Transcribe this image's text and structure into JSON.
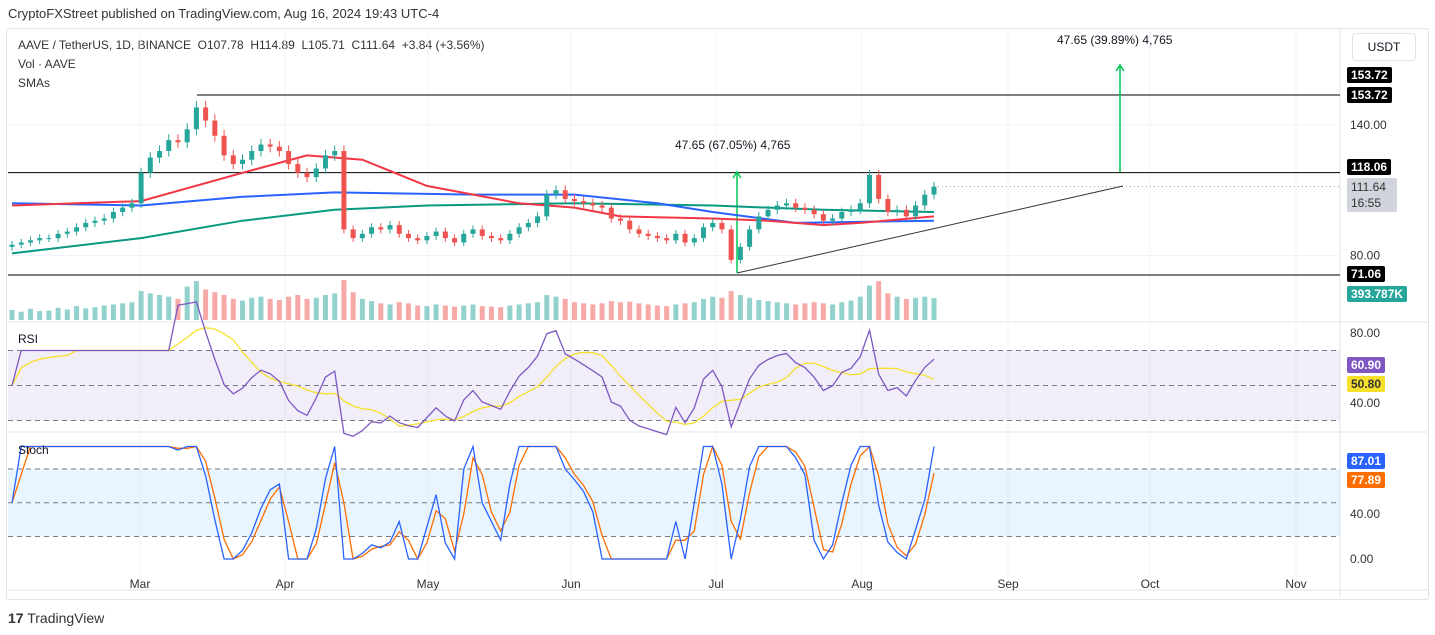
{
  "header": {
    "published": "CryptoFXStreet published on TradingView.com, Aug 16, 2024 19:43 UTC-4",
    "symbol_line": "AAVE / TetherUS, 1D, BINANCE  O107.78  H114.89  L105.71  C111.64  +3.84 (+3.56%)",
    "vol_label": "Vol · AAVE",
    "sma_label": "SMAs",
    "currency": "USDT"
  },
  "panes": {
    "rsi_title": "RSI",
    "stoch_title": "Stoch"
  },
  "price_labels": {
    "high_line": "153.72",
    "high_line2": "153.72",
    "resistance": "118.06",
    "last": "111.64",
    "countdown": "16:55",
    "support": "71.06",
    "volume": "393.787K",
    "rsi": "60.90",
    "rsi_ma": "50.80",
    "stoch_k": "87.01",
    "stoch_d": "77.89"
  },
  "annotations": {
    "measure1": "47.65 (67.05%) 4,765",
    "measure2": "47.65 (39.89%) 4,765"
  },
  "footer": {
    "brand": "TradingView"
  },
  "colors": {
    "up": "#26a69a",
    "down": "#ef5350",
    "sma_red": "#f23645",
    "sma_blue": "#2962ff",
    "sma_green": "#089981",
    "rsi": "#7e57c2",
    "rsi_ma": "#f7e02b",
    "stoch_k": "#2962ff",
    "stoch_d": "#ff6d00",
    "arrow": "#00c853"
  },
  "chart_data": {
    "type": "candlestick",
    "title": "AAVE / TetherUS, 1D, BINANCE",
    "x_ticks": [
      "Mar",
      "Apr",
      "May",
      "Jun",
      "Jul",
      "Aug",
      "Sep",
      "Oct",
      "Nov"
    ],
    "y_ticks": [
      140,
      80
    ],
    "ylim": [
      60,
      165
    ],
    "step_days": 2,
    "closes": [
      85,
      86,
      87,
      88,
      88,
      90,
      91,
      93,
      95,
      96,
      97,
      100,
      102,
      104,
      118,
      125,
      128,
      133,
      132,
      138,
      148,
      142,
      135,
      126,
      122,
      124,
      128,
      131,
      130,
      128,
      122,
      118,
      116,
      120,
      126,
      128,
      92,
      88,
      90,
      93,
      92,
      94,
      90,
      88,
      87,
      89,
      91,
      88,
      86,
      90,
      92,
      89,
      88,
      87,
      90,
      93,
      95,
      98,
      108,
      110,
      106,
      105,
      104,
      103,
      102,
      97,
      96,
      92,
      90,
      89,
      88,
      87,
      90,
      86,
      88,
      93,
      95,
      92,
      78,
      84,
      92,
      98,
      101,
      103,
      104,
      102,
      101,
      99,
      96,
      97,
      100,
      101,
      104,
      117,
      106,
      100,
      101,
      98,
      103,
      108,
      111.64
    ],
    "volumes_k": [
      180,
      150,
      200,
      160,
      170,
      220,
      190,
      250,
      210,
      230,
      260,
      280,
      300,
      320,
      520,
      480,
      450,
      420,
      380,
      600,
      700,
      550,
      500,
      450,
      380,
      350,
      400,
      420,
      380,
      360,
      420,
      450,
      380,
      400,
      450,
      480,
      720,
      500,
      380,
      340,
      300,
      280,
      320,
      300,
      260,
      250,
      280,
      260,
      240,
      260,
      280,
      250,
      240,
      230,
      260,
      280,
      300,
      320,
      450,
      420,
      380,
      320,
      300,
      280,
      300,
      340,
      320,
      330,
      300,
      280,
      260,
      250,
      280,
      300,
      320,
      380,
      420,
      400,
      520,
      450,
      400,
      360,
      340,
      320,
      300,
      280,
      300,
      320,
      300,
      280,
      320,
      350,
      420,
      620,
      700,
      480,
      420,
      380,
      400,
      420,
      393.787
    ],
    "sma_red": [
      [
        0,
        103
      ],
      [
        14,
        105
      ],
      [
        25,
        118
      ],
      [
        32,
        126
      ],
      [
        38,
        124
      ],
      [
        45,
        112
      ],
      [
        55,
        104
      ],
      [
        61,
        102
      ],
      [
        66,
        98
      ],
      [
        76,
        97
      ],
      [
        82,
        96
      ],
      [
        88,
        94
      ],
      [
        92,
        95
      ],
      [
        100,
        98
      ]
    ],
    "sma_blue": [
      [
        0,
        104
      ],
      [
        14,
        103
      ],
      [
        25,
        107
      ],
      [
        35,
        109
      ],
      [
        50,
        108
      ],
      [
        61,
        108
      ],
      [
        70,
        104
      ],
      [
        76,
        100
      ],
      [
        85,
        95
      ],
      [
        100,
        96
      ]
    ],
    "sma_green": [
      [
        0,
        81
      ],
      [
        14,
        88
      ],
      [
        25,
        96
      ],
      [
        35,
        101
      ],
      [
        45,
        103
      ],
      [
        61,
        104
      ],
      [
        76,
        103
      ],
      [
        88,
        101
      ],
      [
        100,
        100
      ]
    ],
    "horizontal_levels": [
      153.72,
      118.06,
      71.06
    ],
    "rsi_ticks": [
      80,
      40
    ],
    "rsi_bands": [
      70,
      50,
      30
    ],
    "stoch_ticks": [
      40,
      0
    ],
    "stoch_bands": [
      80,
      50,
      20
    ]
  }
}
